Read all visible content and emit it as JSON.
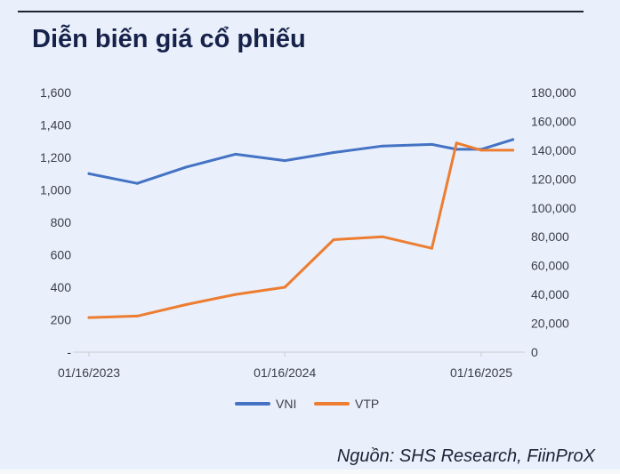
{
  "title": "Diễn biến giá cổ phiếu",
  "source": "Nguồn: SHS Research, FiinProX",
  "colors": {
    "vni": "#4472c4",
    "vtp": "#ed7d31",
    "background": "#e9f0fb",
    "title": "#16224a"
  },
  "chart_data": {
    "type": "line",
    "title": "",
    "grid": false,
    "legend_position": "bottom",
    "x_tick_labels": [
      "01/16/2023",
      "01/16/2024",
      "01/16/2025"
    ],
    "x": [
      "2023-01-16",
      "2023-04-16",
      "2023-07-16",
      "2023-10-16",
      "2024-01-16",
      "2024-04-16",
      "2024-07-16",
      "2024-10-16",
      "2024-12-01",
      "2025-01-16",
      "2025-03-16"
    ],
    "y_left": {
      "ticks": [
        "-",
        "200",
        "400",
        "600",
        "800",
        "1,000",
        "1,200",
        "1,400",
        "1,600"
      ],
      "ylim": [
        0,
        1600
      ]
    },
    "y_right": {
      "ticks": [
        "0",
        "20,000",
        "40,000",
        "60,000",
        "80,000",
        "100,000",
        "120,000",
        "140,000",
        "160,000",
        "180,000"
      ],
      "ylim": [
        0,
        180000
      ]
    },
    "series": [
      {
        "name": "VNI",
        "axis": "left",
        "color": "#4472c4",
        "values": [
          1100,
          1040,
          1140,
          1220,
          1180,
          1230,
          1270,
          1280,
          1250,
          1250,
          1310
        ]
      },
      {
        "name": "VTP",
        "axis": "right",
        "color": "#ed7d31",
        "values": [
          24000,
          25000,
          33000,
          40000,
          45000,
          78000,
          80000,
          72000,
          145000,
          140000,
          140000
        ]
      }
    ]
  }
}
